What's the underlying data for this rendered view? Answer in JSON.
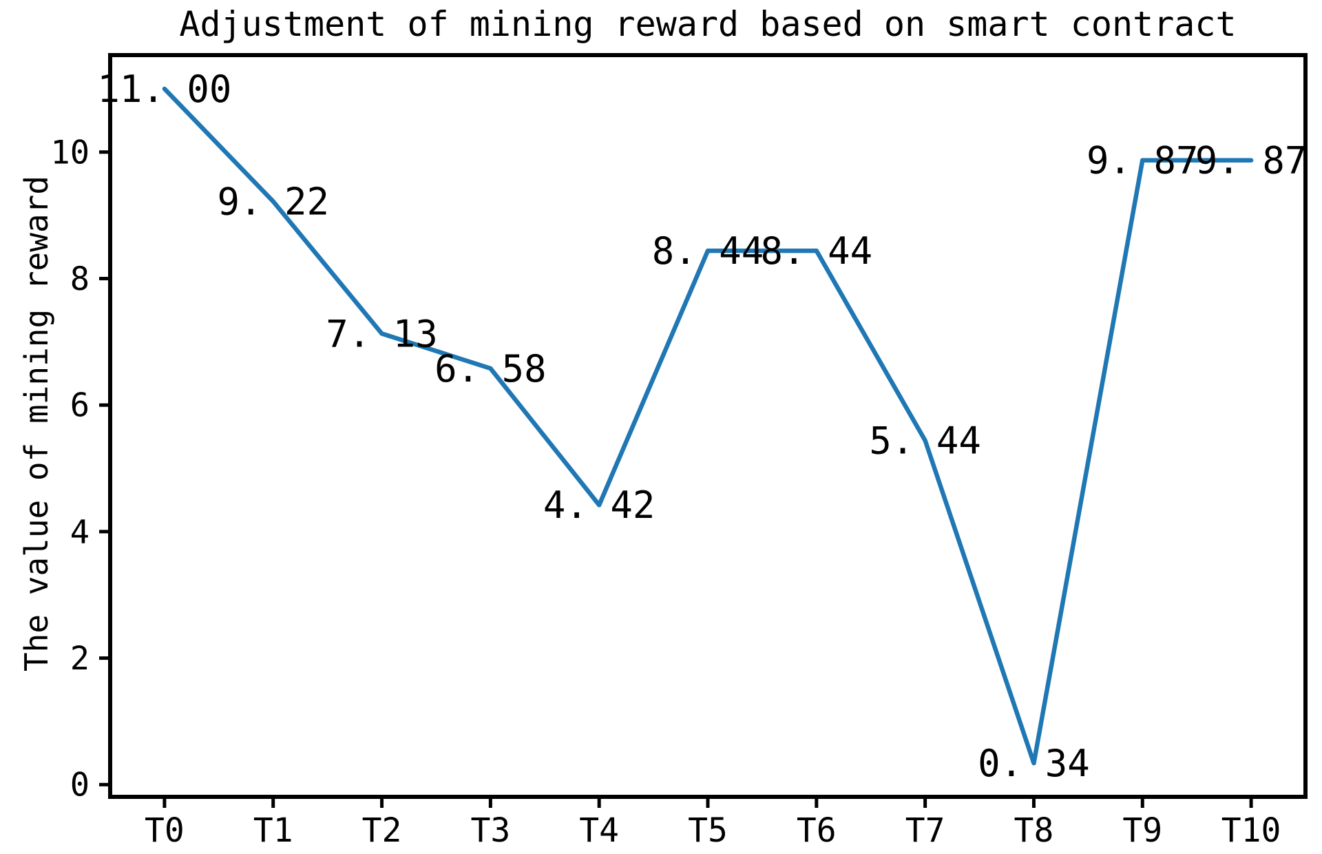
{
  "chart_data": {
    "type": "line",
    "title": "Adjustment of mining reward based on smart contract",
    "xlabel": "",
    "ylabel": "The value of mining reward",
    "categories": [
      "T0",
      "T1",
      "T2",
      "T3",
      "T4",
      "T5",
      "T6",
      "T7",
      "T8",
      "T9",
      "T10"
    ],
    "values": [
      11.0,
      9.22,
      7.13,
      6.58,
      4.42,
      8.44,
      8.44,
      5.44,
      0.34,
      9.87,
      9.87
    ],
    "point_labels": [
      "11.00",
      "9.22",
      "7.13",
      "6.58",
      "4.42",
      "8.44",
      "8.44",
      "5.44",
      "0.34",
      "9.87",
      "9.87"
    ],
    "yticks": [
      0,
      2,
      4,
      6,
      8,
      10
    ],
    "ylim": [
      -0.193,
      11.533
    ],
    "xlim": [
      -0.5,
      10.5
    ],
    "line_color": "#1f77b4",
    "axis_color": "#000000",
    "grid": false,
    "legend": "none"
  }
}
